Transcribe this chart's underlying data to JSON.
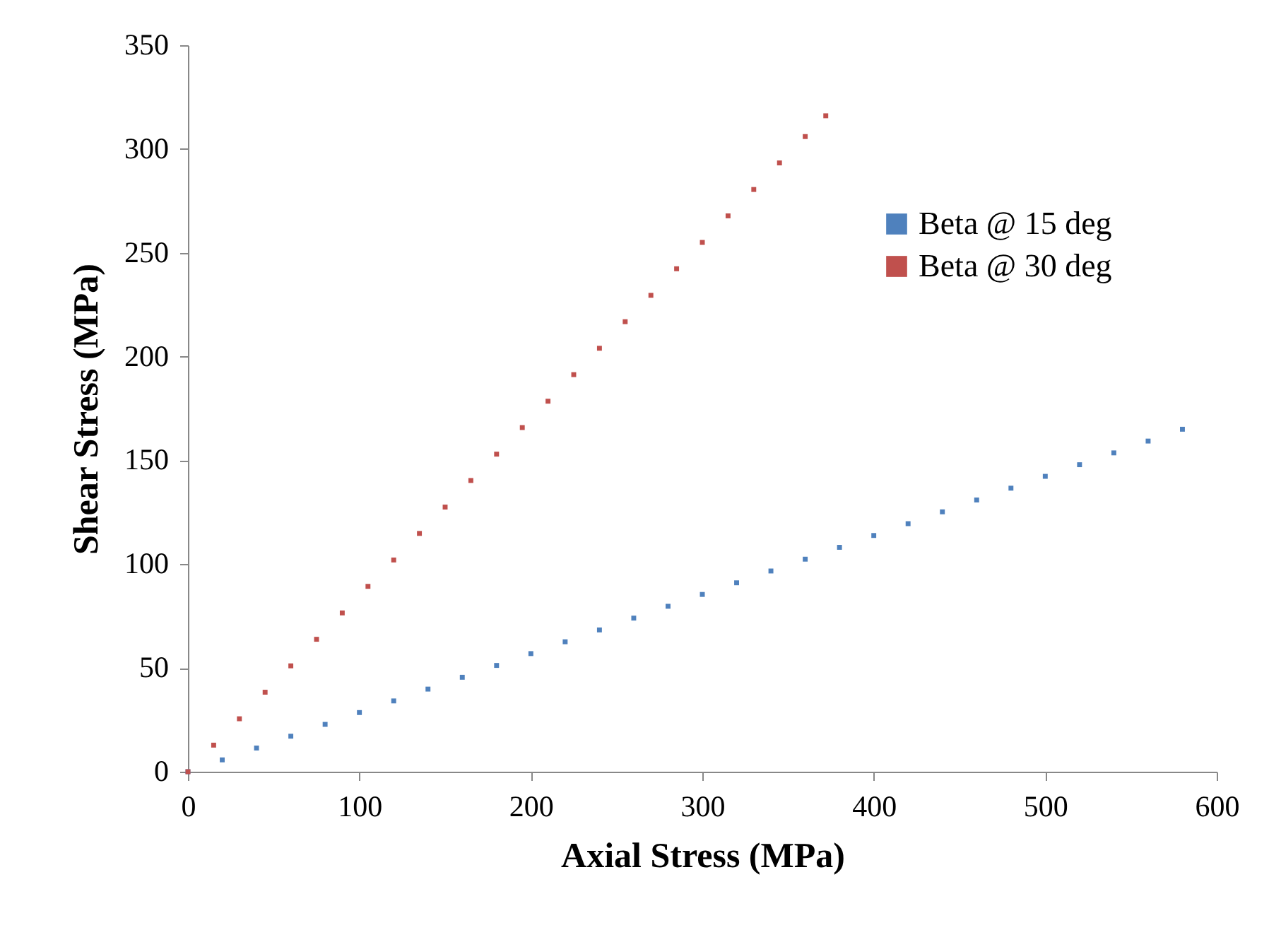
{
  "chart_data": {
    "type": "scatter",
    "xlabel": "Axial Stress (MPa)",
    "ylabel": "Shear Stress (MPa)",
    "xlim": [
      0,
      600
    ],
    "xticks": [
      0,
      100,
      200,
      300,
      400,
      500,
      600
    ],
    "ylim": [
      0,
      350
    ],
    "yticks": [
      0,
      50,
      100,
      150,
      200,
      250,
      300,
      350
    ],
    "grid": false,
    "legend": "top right",
    "marker": "square",
    "series": [
      {
        "name": "Beta @ 15 deg",
        "color": "#4f81bd",
        "x": [
          0,
          20,
          40,
          60,
          80,
          100,
          120,
          140,
          160,
          180,
          200,
          220,
          240,
          260,
          280,
          300,
          320,
          340,
          360,
          380,
          400,
          420,
          440,
          460,
          480,
          500,
          520,
          540,
          560,
          580
        ],
        "values": [
          0,
          5.7,
          11.4,
          17.1,
          22.8,
          28.5,
          34.1,
          39.8,
          45.5,
          51.2,
          56.9,
          62.6,
          68.3,
          74,
          79.7,
          85.4,
          91,
          96.7,
          102.4,
          108.1,
          113.8,
          119.5,
          125.2,
          130.9,
          136.6,
          142.3,
          147.9,
          153.6,
          159.3,
          165
        ]
      },
      {
        "name": "Beta @ 30 deg",
        "color": "#c0504d",
        "x": [
          0,
          15,
          30,
          45,
          60,
          75,
          90,
          105,
          120,
          135,
          150,
          165,
          180,
          195,
          210,
          225,
          240,
          255,
          270,
          285,
          300,
          315,
          330,
          345,
          360,
          372
        ],
        "values": [
          0,
          12.8,
          25.5,
          38.3,
          51,
          63.8,
          76.5,
          89.3,
          102,
          114.8,
          127.5,
          140.3,
          153,
          165.8,
          178.5,
          191.3,
          204,
          216.8,
          229.5,
          242.3,
          255,
          267.8,
          280.5,
          293.3,
          306,
          316
        ]
      }
    ]
  }
}
